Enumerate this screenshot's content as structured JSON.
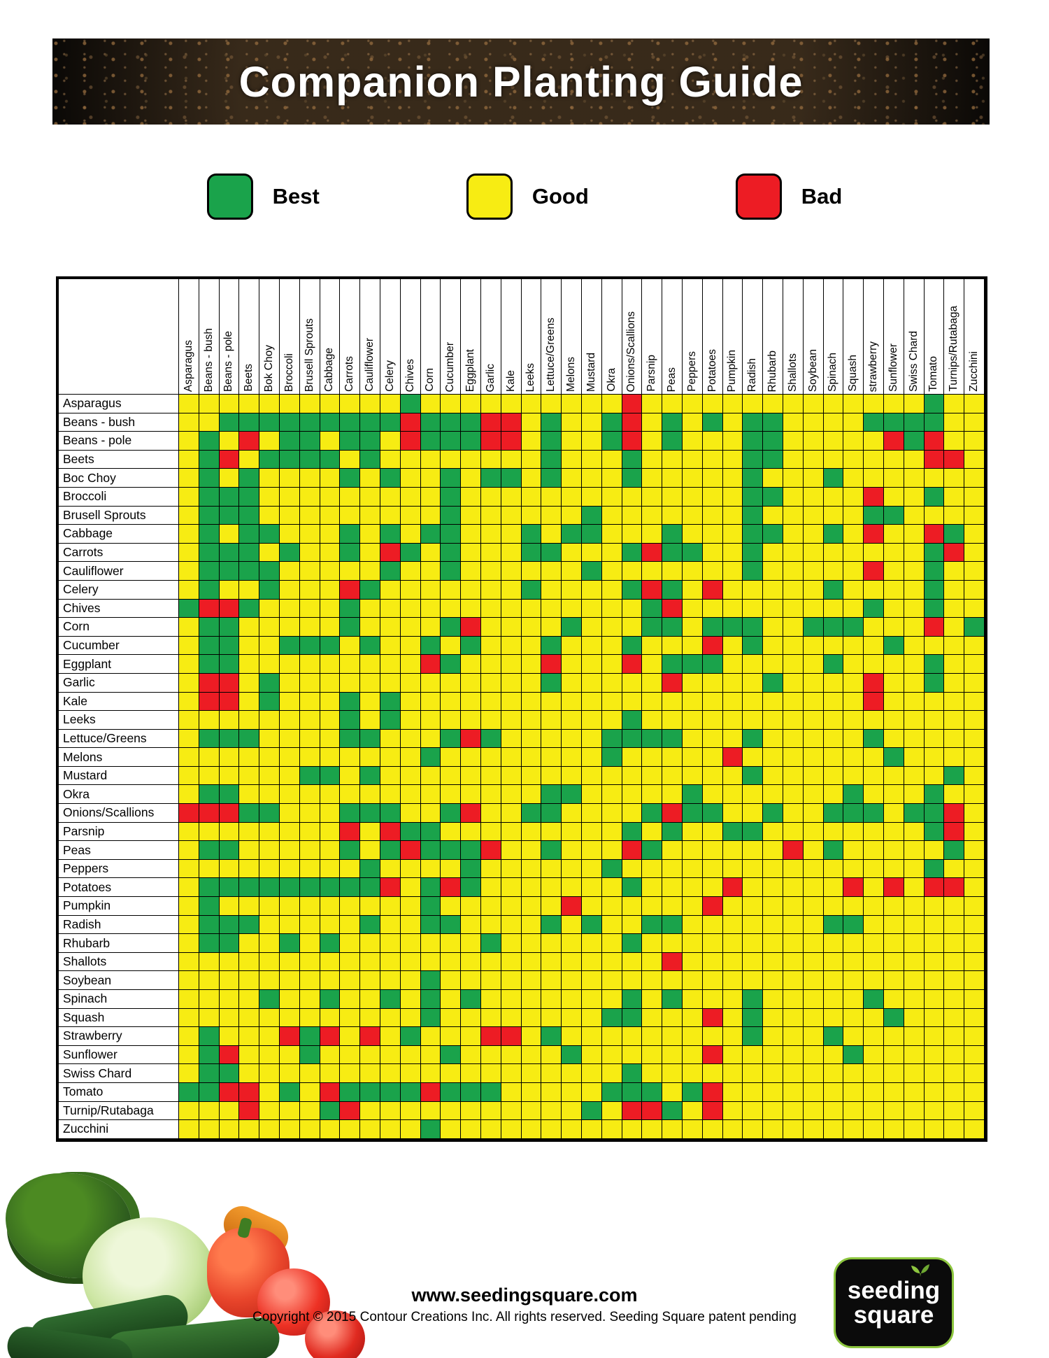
{
  "title": "Companion Planting Guide",
  "legend": {
    "items": [
      {
        "key": "G",
        "label": "Best",
        "color": "#1aa34b"
      },
      {
        "key": "Y",
        "label": "Good",
        "color": "#f7ec13"
      },
      {
        "key": "R",
        "label": "Bad",
        "color": "#ed1c24"
      }
    ]
  },
  "chart_data": {
    "type": "heatmap",
    "title": "Companion Planting Guide",
    "legend_position": "top",
    "cell_colors": {
      "G": "#1aa34b",
      "Y": "#f7ec13",
      "R": "#ed1c24"
    },
    "value_meaning": {
      "G": "Best",
      "Y": "Good",
      "R": "Bad"
    },
    "columns": [
      "Asparagus",
      "Beans - bush",
      "Beans - pole",
      "Beets",
      "Bok Choy",
      "Broccoli",
      "Brusell Sprouts",
      "Cabbage",
      "Carrots",
      "Cauliflower",
      "Celery",
      "Chives",
      "Corn",
      "Cucumber",
      "Eggplant",
      "Garlic",
      "Kale",
      "Leeks",
      "Lettuce/Greens",
      "Melons",
      "Mustard",
      "Okra",
      "Onions/Scallions",
      "Parsnip",
      "Peas",
      "Peppers",
      "Potatoes",
      "Pumpkin",
      "Radish",
      "Rhubarb",
      "Shallots",
      "Soybean",
      "Spinach",
      "Squash",
      "strawberry",
      "Sunflower",
      "Swiss Chard",
      "Tomato",
      "Turnips/Rutabaga",
      "Zucchini"
    ],
    "rows": [
      "Asparagus",
      "Beans - bush",
      "Beans - pole",
      "Beets",
      "Boc Choy",
      "Broccoli",
      "Brusell Sprouts",
      "Cabbage",
      "Carrots",
      "Cauliflower",
      "Celery",
      "Chives",
      "Corn",
      "Cucumber",
      "Eggplant",
      "Garlic",
      "Kale",
      "Leeks",
      "Lettuce/Greens",
      "Melons",
      "Mustard",
      "Okra",
      "Onions/Scallions",
      "Parsnip",
      "Peas",
      "Peppers",
      "Potatoes",
      "Pumpkin",
      "Radish",
      "Rhubarb",
      "Shallots",
      "Soybean",
      "Spinach",
      "Squash",
      "Strawberry",
      "Sunflower",
      "Swiss Chard",
      "Tomato",
      "Turnip/Rutabaga",
      "Zucchini"
    ],
    "values": [
      "YYYYYYYYYYYGYYYYYYYYYYRYYYYYYYYYYYYYYGYY",
      "YYGGGGGGGGGRGGGRRYGYYGRYGYGYGGYYYYGGGGYY",
      "YGYRYGGYGGYRGGGRRYGYYGRYGYYYGGYYYYYRGRYY",
      "YGRYGGGGYGYYYYYYYYGYYYGYYYYYGGYYYYYYYRRY",
      "YGYGYYYYGYGYYGYGGYGYYYGYYYYYGYYYGYYYYYYY",
      "YGGGYYYYYYYYYGYYYYYYYYYYYYYYGGYYYYRYYGYY",
      "YGGGYYYYYYYYYGYYYYYYGYYYYYYYGYYYYYGGYYYY",
      "YGYGGYYYGYGYGGYYYGYGGYYYGYYYGGYYGYRYYRGY",
      "YGGGYGYYGYRGYGYYYGGYYYGRGGYYGYYYYYYYYGRY",
      "YGGGGYYYYYGYYGYYYYYYGYYYYYYYGYYYYYRYYGYY",
      "YGYYGYYYRGYYYYYYYGYYYYGRGYRYYYYYGYYYYGYY",
      "GRRGYYYYGYYYYYYYYYYYYYYGRYYYYYYYYYGYYGYY",
      "YGGYYYYYGYYYYGRYYYYGYYYGGYGGGYYGGGYYYRYG",
      "YGGYYGGGYGYYGYGYYYGYYYGYYYRYGYYYYYYGYYYY",
      "YGGYYYYYYYYYRGYYYYRYYYRYGGGYYYYYGYYYYGYY",
      "YRRYGYYYYYYYYYYYYYGYYYYYRYYYYGYYYYRYYGYY",
      "YRRYGYYYGYGYYYYYYYYYYYYYYYYYYYYYYYRYYYYY",
      "YYYYYYYYGYGYYYYYYYYYYYGYYYYYYYYYYYYYYYYY",
      "YGGGYYYYGGYYYGRGYYYYYGGGGYYYGYYYYYGYYYYY",
      "YYYYYYYYYYYYGYYYYYYYYGYYYYYRYYYYYYYGYYYY",
      "YYYYYYGGYGYYYYYYYYYYYYYYYYYYGYYYYYYYYYGY",
      "YGGYYYYYYYYYYYYYYYGGYYYYYGYYYYYYYGYYYGYY",
      "RRRGGYYYGGGYYGRYYGGYYYYGRGGYYGYYGGGYGGRY",
      "YYYYYYYYRYRGGYYYYYYYYYGYGYYGGYYYYYYYYGRY",
      "YGGYYYYYGYGRGGGRYYGYYYRGYYYYYYRYGYYYYYGY",
      "YYYYYYYYYGYYYYGYYYYYYGYYYYYYYYYYYYYYYGYY",
      "YGGGGGGGGGRYGRGYYYYYYYGYYYYRYYYYYRYRYRRY",
      "YGYYYYYYYYYYGYYYYYYRYYYYYYRYYYYYYYYYYYYY",
      "YGGGYYYYYGYYGGYYYYGYGYYGGYYYYYYYGGYYYYYY",
      "YGGYYGYGYYYYYYYGYYYYYYGYYYYYYYYYYYYYYYYY",
      "YYYYYYYYYYYYYYYYYYYYYYYYRYYYYYYYYYYYYYYY",
      "YYYYYYYYYYYYGYYYYYYYYYYYYYYYYYYYYYYYYYYY",
      "YYYYGYYGYYGYGYGYYYYYYYGYGYYYGYYYYYGYYYYY",
      "YYYYYYYYYYYYGYYYYYYYYGGYYYRYGYYYYYYGYYYY",
      "YGYYYRGRYRYGYYYRRYGYYYYYYYYYGYYYGYYYYYYY",
      "YGRYYYGYYYYYYGYYYYYGYYYYYYRYYYYYYGYYYYYY",
      "YGGYYYYYYYYYYYYYYYYYYYGYYYYYYYYYYYYYYYYY",
      "GGRRYGYRGGGGRGGGYYYYYGGGYGRYYYYYYYYYYYYY",
      "YYYRYYYGRYYYYYYYYYYYGYRRGYRYYYYYYYYYYYYY",
      "YYYYYYYYYYYYGYYYYYYYYYYYYYYYYYYYYYYYYYYY"
    ]
  },
  "footer": {
    "url": "www.seedingsquare.com",
    "copyright": "Copyright © 2015 Contour Creations Inc. All rights reserved. Seeding Square patent pending"
  },
  "logo": {
    "line1": "seeding",
    "line2": "square"
  }
}
